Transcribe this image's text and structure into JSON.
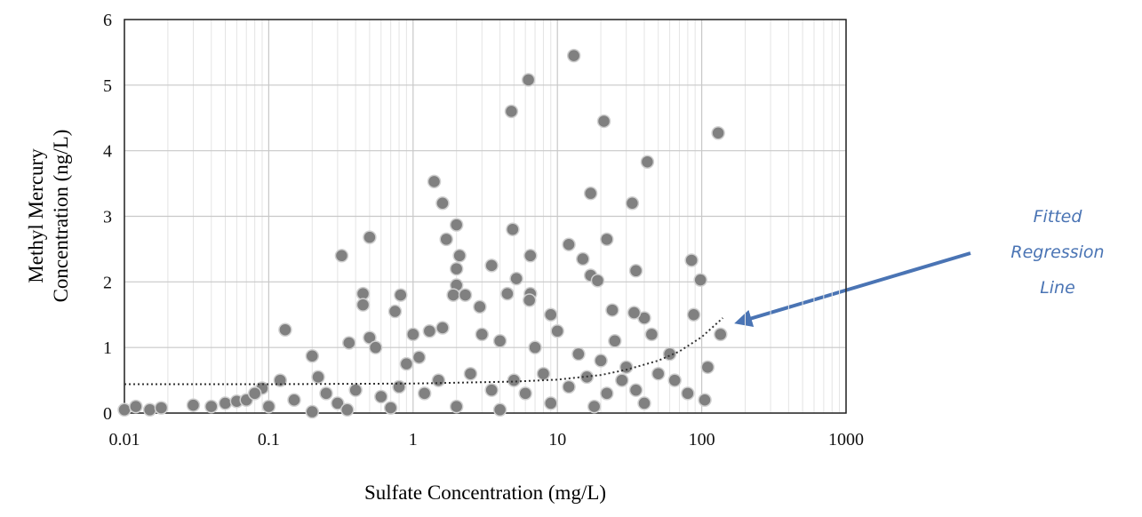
{
  "chart_data": {
    "type": "scatter",
    "xlabel": "Sulfate Concentration (mg/L)",
    "ylabel": [
      "Methyl Mercury",
      "Concentration (ng/L)"
    ],
    "annotation": [
      "Fitted",
      "Regression",
      "Line"
    ],
    "xscale": "log",
    "xlim": [
      0.01,
      1000
    ],
    "xticks": [
      0.01,
      0.1,
      1,
      10,
      100,
      1000
    ],
    "ylim": [
      0,
      6
    ],
    "yticks": [
      0,
      1,
      2,
      3,
      4,
      5,
      6
    ],
    "grid": true,
    "minor_grid": true,
    "series": [
      {
        "type": "scatter",
        "color": "#808080",
        "x": [
          13,
          6.3,
          4.8,
          21,
          130,
          42,
          1.4,
          17,
          1.6,
          33,
          2,
          4.9,
          0.5,
          1.7,
          22,
          12,
          0.32,
          6.5,
          2.1,
          15,
          3.5,
          2,
          35,
          85,
          98,
          17,
          19,
          2,
          5.2,
          0.45,
          0.82,
          1.9,
          2.3,
          4.5,
          6.5,
          0.45,
          0.75,
          2.9,
          6.4,
          9,
          24,
          40,
          34,
          88,
          135,
          0.13,
          0.36,
          0.5,
          0.55,
          1,
          1.3,
          1.6,
          0.2,
          0.22,
          0.12,
          0.09,
          0.9,
          1.1,
          3,
          4,
          7,
          10,
          14,
          20,
          25,
          30,
          45,
          60,
          110,
          105,
          80,
          0.01,
          0.012,
          0.015,
          0.018,
          0.03,
          0.04,
          0.05,
          0.06,
          0.07,
          0.08,
          0.1,
          0.15,
          0.25,
          0.3,
          0.4,
          0.6,
          0.8,
          1.2,
          1.5,
          2.5,
          3.5,
          5,
          6,
          8,
          12,
          16,
          22,
          28,
          35,
          50,
          65,
          40,
          18,
          9,
          4,
          2,
          0.7,
          0.35,
          0.2
        ],
        "values": [
          5.45,
          5.08,
          4.6,
          4.45,
          4.27,
          3.83,
          3.53,
          3.35,
          3.2,
          3.2,
          2.87,
          2.8,
          2.68,
          2.65,
          2.65,
          2.57,
          2.4,
          2.4,
          2.4,
          2.35,
          2.25,
          2.2,
          2.17,
          2.33,
          2.03,
          2.1,
          2.02,
          1.95,
          2.05,
          1.82,
          1.8,
          1.8,
          1.8,
          1.82,
          1.82,
          1.65,
          1.55,
          1.62,
          1.72,
          1.5,
          1.57,
          1.45,
          1.53,
          1.5,
          1.2,
          1.27,
          1.07,
          1.15,
          1.0,
          1.2,
          1.25,
          1.3,
          0.87,
          0.55,
          0.5,
          0.38,
          0.75,
          0.85,
          1.2,
          1.1,
          1.0,
          1.25,
          0.9,
          0.8,
          1.1,
          0.7,
          1.2,
          0.9,
          0.7,
          0.2,
          0.3,
          0.05,
          0.1,
          0.05,
          0.08,
          0.12,
          0.1,
          0.15,
          0.18,
          0.2,
          0.3,
          0.1,
          0.2,
          0.3,
          0.15,
          0.35,
          0.25,
          0.4,
          0.3,
          0.5,
          0.6,
          0.35,
          0.5,
          0.3,
          0.6,
          0.4,
          0.55,
          0.3,
          0.5,
          0.35,
          0.6,
          0.5,
          0.15,
          0.1,
          0.15,
          0.05,
          0.1,
          0.08,
          0.05,
          0.02
        ]
      },
      {
        "type": "line",
        "color": "#333333",
        "x": [
          0.01,
          0.1,
          1,
          5,
          10,
          20,
          30,
          50,
          70,
          100,
          140
        ],
        "values": [
          0.44,
          0.44,
          0.45,
          0.48,
          0.51,
          0.58,
          0.66,
          0.8,
          0.94,
          1.16,
          1.45
        ]
      }
    ]
  }
}
